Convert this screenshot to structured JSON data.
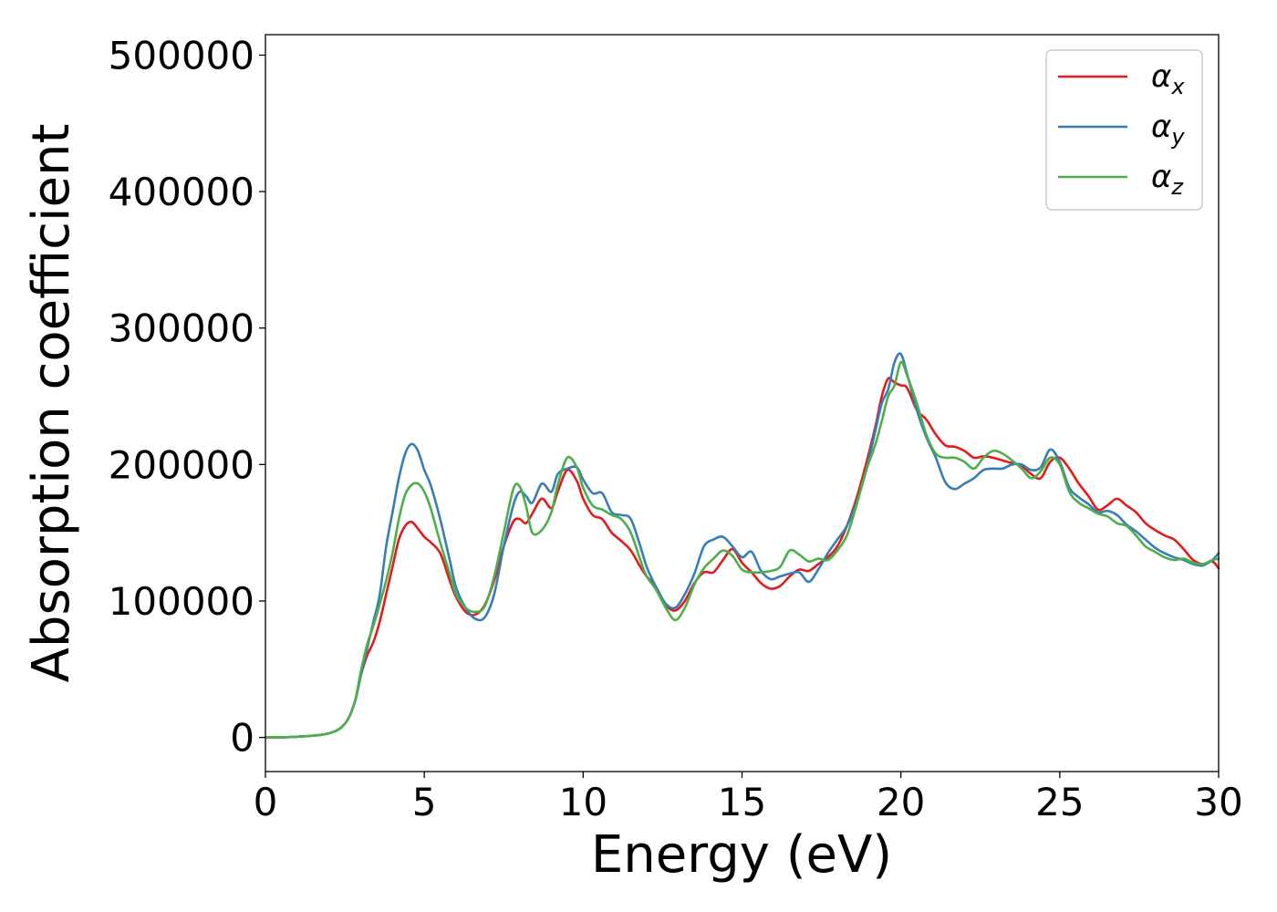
{
  "chart_data": {
    "type": "line",
    "xlabel": "Energy (eV)",
    "ylabel": "Absorption coefficient",
    "xlim": [
      0,
      30
    ],
    "ylim": [
      -25000,
      515000
    ],
    "xticks": [
      0,
      5,
      10,
      15,
      20,
      25,
      30
    ],
    "yticks": [
      0,
      100000,
      200000,
      300000,
      400000,
      500000
    ],
    "grid": false,
    "legend_position": "top-right",
    "series": [
      {
        "name": "αx",
        "label_base": "α",
        "label_sub": "x",
        "color": "#e41a1c",
        "x": [
          0,
          1,
          2,
          2.5,
          2.8,
          3.0,
          3.2,
          3.4,
          3.6,
          3.8,
          4.0,
          4.2,
          4.4,
          4.6,
          4.8,
          5.0,
          5.2,
          5.5,
          5.8,
          6.0,
          6.3,
          6.6,
          6.9,
          7.2,
          7.5,
          7.8,
          8.0,
          8.2,
          8.4,
          8.7,
          9.0,
          9.2,
          9.5,
          9.8,
          10.0,
          10.3,
          10.6,
          10.9,
          11.2,
          11.5,
          11.8,
          12.0,
          12.3,
          12.6,
          12.9,
          13.2,
          13.5,
          13.8,
          14.1,
          14.4,
          14.7,
          15.0,
          15.3,
          15.6,
          15.9,
          16.2,
          16.5,
          16.8,
          17.1,
          17.4,
          17.7,
          18.0,
          18.3,
          18.6,
          18.9,
          19.2,
          19.4,
          19.6,
          19.8,
          20.0,
          20.2,
          20.5,
          20.8,
          21.1,
          21.4,
          21.7,
          22.0,
          22.3,
          22.6,
          22.9,
          23.2,
          23.5,
          23.8,
          24.1,
          24.4,
          24.7,
          25.0,
          25.3,
          25.6,
          25.9,
          26.2,
          26.5,
          26.8,
          27.1,
          27.4,
          27.7,
          28.0,
          28.3,
          28.6,
          28.9,
          29.2,
          29.5,
          29.8,
          30
        ],
        "y": [
          0,
          500,
          3000,
          10000,
          25000,
          45000,
          60000,
          70000,
          85000,
          105000,
          125000,
          145000,
          155000,
          158000,
          153000,
          147000,
          143000,
          135000,
          115000,
          103000,
          92000,
          90000,
          97000,
          115000,
          140000,
          158000,
          160000,
          157000,
          164000,
          175000,
          168000,
          180000,
          196000,
          188000,
          175000,
          163000,
          160000,
          150000,
          144000,
          137000,
          125000,
          118000,
          110000,
          97000,
          93000,
          100000,
          113000,
          121000,
          121000,
          130000,
          138000,
          128000,
          121000,
          113000,
          109000,
          111000,
          118000,
          123000,
          122000,
          127000,
          132000,
          140000,
          155000,
          175000,
          200000,
          228000,
          250000,
          263000,
          260000,
          258000,
          256000,
          240000,
          233000,
          222000,
          214000,
          213000,
          210000,
          205000,
          206000,
          205000,
          203000,
          201000,
          199000,
          193000,
          190000,
          202000,
          205000,
          197000,
          186000,
          177000,
          167000,
          170000,
          175000,
          170000,
          165000,
          157000,
          152000,
          148000,
          145000,
          138000,
          130000,
          127000,
          129000,
          124000
        ]
      },
      {
        "name": "αy",
        "label_base": "α",
        "label_sub": "y",
        "color": "#377eb8",
        "x": [
          0,
          1,
          2,
          2.5,
          2.8,
          3.0,
          3.2,
          3.4,
          3.6,
          3.8,
          4.0,
          4.2,
          4.4,
          4.6,
          4.8,
          5.0,
          5.2,
          5.5,
          5.8,
          6.0,
          6.3,
          6.6,
          6.9,
          7.2,
          7.5,
          7.8,
          8.0,
          8.2,
          8.4,
          8.7,
          9.0,
          9.2,
          9.5,
          9.8,
          10.0,
          10.3,
          10.6,
          10.9,
          11.2,
          11.5,
          11.8,
          12.0,
          12.3,
          12.6,
          12.9,
          13.2,
          13.5,
          13.8,
          14.1,
          14.4,
          14.7,
          15.0,
          15.3,
          15.6,
          15.9,
          16.2,
          16.5,
          16.8,
          17.1,
          17.4,
          17.7,
          18.0,
          18.3,
          18.6,
          18.9,
          19.2,
          19.4,
          19.6,
          19.8,
          20.0,
          20.2,
          20.5,
          20.8,
          21.1,
          21.4,
          21.7,
          22.0,
          22.3,
          22.6,
          22.9,
          23.2,
          23.5,
          23.8,
          24.1,
          24.4,
          24.7,
          25.0,
          25.3,
          25.6,
          25.9,
          26.2,
          26.5,
          26.8,
          27.1,
          27.4,
          27.7,
          28.0,
          28.3,
          28.6,
          28.9,
          29.2,
          29.5,
          29.8,
          30
        ],
        "y": [
          0,
          500,
          3000,
          10000,
          25000,
          45000,
          65000,
          85000,
          105000,
          140000,
          165000,
          190000,
          208000,
          215000,
          210000,
          196000,
          185000,
          160000,
          130000,
          110000,
          95000,
          87000,
          88000,
          105000,
          140000,
          170000,
          180000,
          177000,
          172000,
          186000,
          180000,
          193000,
          197000,
          198000,
          189000,
          179000,
          179000,
          165000,
          163000,
          160000,
          140000,
          125000,
          110000,
          98000,
          95000,
          105000,
          120000,
          140000,
          145000,
          147000,
          140000,
          132000,
          136000,
          122000,
          116000,
          118000,
          120000,
          121000,
          114000,
          123000,
          135000,
          145000,
          155000,
          172000,
          195000,
          225000,
          245000,
          255000,
          275000,
          281000,
          266000,
          240000,
          220000,
          205000,
          187000,
          182000,
          186000,
          190000,
          196000,
          197000,
          197000,
          200000,
          200000,
          196000,
          198000,
          211000,
          202000,
          183000,
          176000,
          171000,
          165000,
          166000,
          163000,
          156000,
          151000,
          145000,
          139000,
          135000,
          132000,
          130000,
          127000,
          126000,
          130000,
          135000
        ]
      },
      {
        "name": "αz",
        "label_base": "α",
        "label_sub": "z",
        "color": "#4daf4a",
        "x": [
          0,
          1,
          2,
          2.5,
          2.8,
          3.0,
          3.2,
          3.4,
          3.6,
          3.8,
          4.0,
          4.2,
          4.4,
          4.6,
          4.8,
          5.0,
          5.2,
          5.5,
          5.8,
          6.0,
          6.3,
          6.6,
          6.9,
          7.2,
          7.5,
          7.8,
          8.0,
          8.2,
          8.4,
          8.7,
          9.0,
          9.2,
          9.5,
          9.8,
          10.0,
          10.3,
          10.6,
          10.9,
          11.2,
          11.5,
          11.8,
          12.0,
          12.3,
          12.6,
          12.9,
          13.2,
          13.5,
          13.8,
          14.1,
          14.4,
          14.7,
          15.0,
          15.3,
          15.6,
          15.9,
          16.2,
          16.5,
          16.8,
          17.1,
          17.4,
          17.7,
          18.0,
          18.3,
          18.6,
          18.9,
          19.2,
          19.4,
          19.6,
          19.8,
          20.0,
          20.2,
          20.5,
          20.8,
          21.1,
          21.4,
          21.7,
          22.0,
          22.3,
          22.6,
          22.9,
          23.2,
          23.5,
          23.8,
          24.1,
          24.4,
          24.7,
          25.0,
          25.3,
          25.6,
          25.9,
          26.2,
          26.5,
          26.8,
          27.1,
          27.4,
          27.7,
          28.0,
          28.3,
          28.6,
          28.9,
          29.2,
          29.5,
          29.8,
          30
        ],
        "y": [
          0,
          500,
          3000,
          10000,
          25000,
          48000,
          68000,
          82000,
          98000,
          115000,
          135000,
          160000,
          178000,
          185000,
          186000,
          180000,
          168000,
          143000,
          120000,
          105000,
          95000,
          92000,
          96000,
          118000,
          150000,
          182000,
          184000,
          170000,
          150000,
          152000,
          165000,
          185000,
          205000,
          198000,
          183000,
          170000,
          167000,
          163000,
          160000,
          150000,
          130000,
          118000,
          108000,
          95000,
          86000,
          95000,
          112000,
          124000,
          131000,
          137000,
          133000,
          123000,
          121000,
          121000,
          122000,
          125000,
          137000,
          134000,
          129000,
          131000,
          130000,
          137000,
          148000,
          170000,
          195000,
          215000,
          232000,
          250000,
          258000,
          275000,
          265000,
          245000,
          222000,
          208000,
          205000,
          205000,
          202000,
          197000,
          205000,
          210000,
          208000,
          203000,
          197000,
          190000,
          195000,
          205000,
          200000,
          180000,
          172000,
          168000,
          164000,
          162000,
          157000,
          155000,
          148000,
          140000,
          136000,
          132000,
          130000,
          131000,
          128000,
          127000,
          130000,
          131000
        ]
      }
    ]
  }
}
